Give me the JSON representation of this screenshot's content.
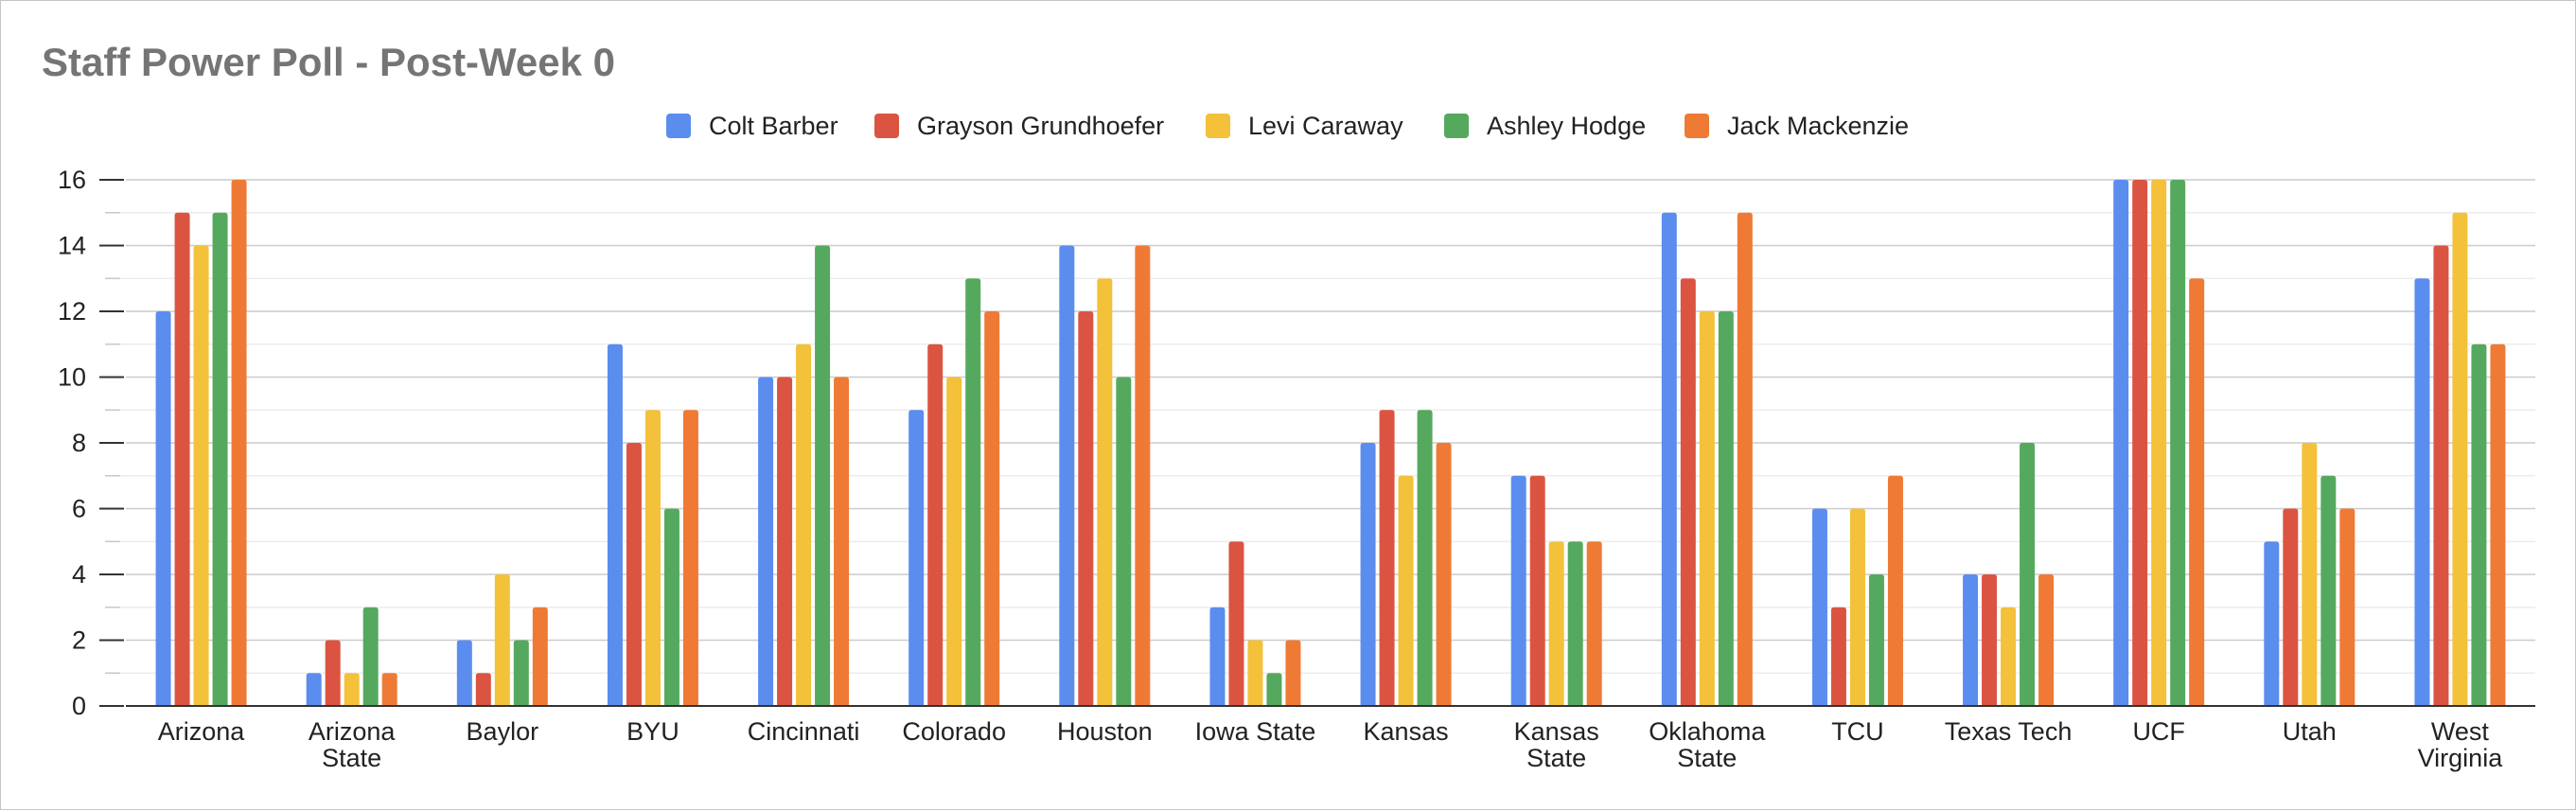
{
  "chart_data": {
    "type": "bar",
    "title": "Staff Power Poll - Post-Week 0",
    "xlabel": "",
    "ylabel": "",
    "ylim": [
      0,
      16
    ],
    "yticks": [
      0,
      2,
      4,
      6,
      8,
      10,
      12,
      14,
      16
    ],
    "minor_gridlines": true,
    "legend_position": "top",
    "categories": [
      "Arizona",
      "Arizona State",
      "Baylor",
      "BYU",
      "Cincinnati",
      "Colorado",
      "Houston",
      "Iowa State",
      "Kansas",
      "Kansas State",
      "Oklahoma State",
      "TCU",
      "Texas Tech",
      "UCF",
      "Utah",
      "West Virginia"
    ],
    "category_label_lines": [
      [
        "Arizona"
      ],
      [
        "Arizona",
        "State"
      ],
      [
        "Baylor"
      ],
      [
        "BYU"
      ],
      [
        "Cincinnati"
      ],
      [
        "Colorado"
      ],
      [
        "Houston"
      ],
      [
        "Iowa State"
      ],
      [
        "Kansas"
      ],
      [
        "Kansas",
        "State"
      ],
      [
        "Oklahoma",
        "State"
      ],
      [
        "TCU"
      ],
      [
        "Texas Tech"
      ],
      [
        "UCF"
      ],
      [
        "Utah"
      ],
      [
        "West",
        "Virginia"
      ]
    ],
    "series": [
      {
        "name": "Colt Barber",
        "color": "#5B8DEF",
        "values": [
          12,
          1,
          2,
          11,
          10,
          9,
          14,
          3,
          8,
          7,
          15,
          6,
          4,
          16,
          5,
          13
        ]
      },
      {
        "name": "Grayson Grundhoefer",
        "color": "#DB5442",
        "values": [
          15,
          2,
          1,
          8,
          10,
          11,
          12,
          5,
          9,
          7,
          13,
          3,
          4,
          16,
          6,
          14
        ]
      },
      {
        "name": "Levi Caraway",
        "color": "#F3C13A",
        "values": [
          14,
          1,
          4,
          9,
          11,
          10,
          13,
          2,
          7,
          5,
          12,
          6,
          3,
          16,
          8,
          15
        ]
      },
      {
        "name": "Ashley Hodge",
        "color": "#55A95E",
        "values": [
          15,
          3,
          2,
          6,
          14,
          13,
          10,
          1,
          9,
          5,
          12,
          4,
          8,
          16,
          7,
          11
        ]
      },
      {
        "name": "Jack Mackenzie",
        "color": "#EF7A35",
        "values": [
          16,
          1,
          3,
          9,
          10,
          12,
          14,
          2,
          8,
          5,
          15,
          7,
          4,
          13,
          6,
          11
        ]
      }
    ]
  }
}
